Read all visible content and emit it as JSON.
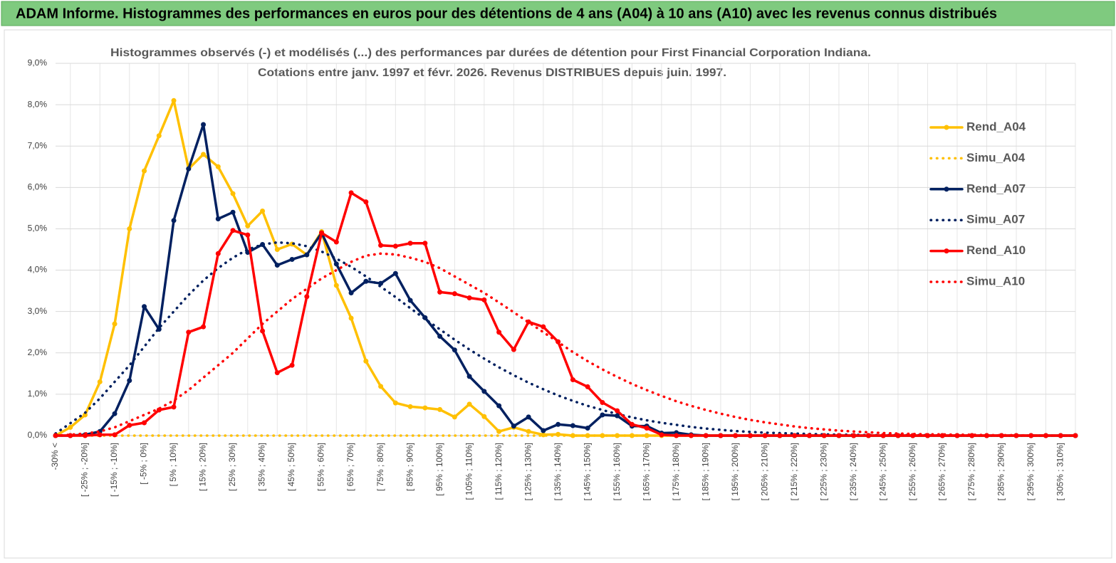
{
  "header": {
    "title": "ADAM Informe. Histogrammes des performances en euros pour des détentions de 4 ans (A04) à 10 ans (A10) avec les revenus connus distribués"
  },
  "chart_data": {
    "type": "line",
    "title": "Histogrammes observés (-) et modélisés (...) des performances par durées de détention pour First Financial Corporation Indiana.",
    "subtitle": "Cotations entre janv. 1997 et févr. 2026. Revenus DISTRIBUES depuis juin. 1997.",
    "categories": [
      "-30% <",
      null,
      "[ -25% ; -20%]",
      null,
      "[ -15% ; -10%]",
      null,
      "[ -5% ; 0%]",
      null,
      "[ 5% ; 10%]",
      null,
      "[ 15% ; 20%]",
      null,
      "[ 25% ; 30%]",
      null,
      "[ 35% ; 40%]",
      null,
      "[ 45% ; 50%]",
      null,
      "[ 55% ; 60%]",
      null,
      "[ 65% ; 70%]",
      null,
      "[ 75% ; 80%]",
      null,
      "[ 85% ; 90%]",
      null,
      "[ 95% ; 100%]",
      null,
      "[ 105% ; 110%]",
      null,
      "[ 115% ; 120%]",
      null,
      "[ 125% ; 130%]",
      null,
      "[ 135% ; 140%]",
      null,
      "[ 145% ; 150%]",
      null,
      "[ 155% ; 160%]",
      null,
      "[ 165% ; 170%]",
      null,
      "[ 175% ; 180%]",
      null,
      "[ 185% ; 190%]",
      null,
      "[ 195% ; 200%]",
      null,
      "[ 205% ; 210%]",
      null,
      "[ 215% ; 220%]",
      null,
      "[ 225% ; 230%]",
      null,
      "[ 235% ; 240%]",
      null,
      "[ 245% ; 250%]",
      null,
      "[ 255% ; 260%]",
      null,
      "[ 265% ; 270%]",
      null,
      "[ 275% ; 280%]",
      null,
      "[ 285% ; 290%]",
      null,
      "[ 295% ; 300%]",
      null,
      "[ 305% ; 310%]",
      null
    ],
    "series": [
      {
        "name": "Rend_A04",
        "color": "#ffc000",
        "style": "solid",
        "values": [
          0,
          0.2,
          0.5,
          1.3,
          2.7,
          5.0,
          6.4,
          7.25,
          8.1,
          6.45,
          6.8,
          6.5,
          5.85,
          5.07,
          5.43,
          4.5,
          4.63,
          4.37,
          4.93,
          3.63,
          2.84,
          1.8,
          1.19,
          0.79,
          0.7,
          0.67,
          0.63,
          0.45,
          0.76,
          0.46,
          0.1,
          0.2,
          0.1,
          0.02,
          0.03,
          0,
          0,
          0,
          0,
          0,
          0,
          0,
          0,
          0,
          0,
          0,
          0,
          0,
          0,
          0,
          0,
          0,
          0,
          0,
          0,
          0,
          0,
          0,
          0,
          0,
          0,
          0,
          0,
          0,
          0,
          0,
          0,
          0,
          0,
          0
        ]
      },
      {
        "name": "Simu_A04",
        "color": "#ffc000",
        "style": "dotted",
        "values": [
          0,
          0,
          0,
          0,
          0,
          0,
          0,
          0,
          0,
          0,
          0,
          0,
          0,
          0,
          0,
          0,
          0,
          0,
          0,
          0,
          0,
          0,
          0,
          0,
          0,
          0,
          0,
          0,
          0,
          0,
          0,
          0,
          0,
          0,
          0,
          0,
          0,
          0,
          0,
          0,
          0,
          0,
          0,
          0,
          0,
          0,
          0,
          0,
          0,
          0,
          0,
          0,
          0,
          0,
          0,
          0,
          0,
          0,
          0,
          0,
          0,
          0,
          0,
          0,
          0,
          0,
          0,
          0,
          0,
          0
        ]
      },
      {
        "name": "Rend_A07",
        "color": "#002060",
        "style": "solid",
        "values": [
          0,
          0,
          0.02,
          0.1,
          0.53,
          1.33,
          3.12,
          2.57,
          5.2,
          6.45,
          7.52,
          5.24,
          5.4,
          4.43,
          4.62,
          4.12,
          4.26,
          4.37,
          4.9,
          4.15,
          3.45,
          3.73,
          3.68,
          3.92,
          3.27,
          2.85,
          2.4,
          2.07,
          1.43,
          1.07,
          0.72,
          0.23,
          0.45,
          0.12,
          0.27,
          0.24,
          0.18,
          0.5,
          0.48,
          0.23,
          0.23,
          0.06,
          0.07,
          0.02,
          0,
          0,
          0,
          0,
          0,
          0,
          0,
          0,
          0,
          0,
          0,
          0,
          0,
          0,
          0,
          0,
          0,
          0,
          0,
          0,
          0,
          0,
          0,
          0,
          0,
          0
        ]
      },
      {
        "name": "Simu_A07",
        "color": "#002060",
        "style": "dotted",
        "values": [
          0.05,
          0.3,
          0.55,
          0.9,
          1.3,
          1.7,
          2.15,
          2.6,
          3.0,
          3.4,
          3.75,
          4.05,
          4.3,
          4.5,
          4.62,
          4.67,
          4.65,
          4.58,
          4.45,
          4.28,
          4.08,
          3.85,
          3.6,
          3.35,
          3.08,
          2.82,
          2.57,
          2.32,
          2.08,
          1.86,
          1.65,
          1.46,
          1.28,
          1.12,
          0.97,
          0.84,
          0.72,
          0.62,
          0.52,
          0.44,
          0.37,
          0.31,
          0.26,
          0.21,
          0.17,
          0.14,
          0.11,
          0.09,
          0.07,
          0.06,
          0.05,
          0.04,
          0.03,
          0.02,
          0.02,
          0.01,
          0.01,
          0.01,
          0.01,
          0.01,
          0,
          0,
          0,
          0,
          0,
          0,
          0,
          0,
          0,
          0
        ]
      },
      {
        "name": "Rend_A10",
        "color": "#ff0000",
        "style": "solid",
        "values": [
          0,
          0,
          0,
          0.02,
          0.02,
          0.25,
          0.31,
          0.62,
          0.69,
          2.5,
          2.63,
          4.4,
          4.96,
          4.85,
          2.53,
          1.52,
          1.7,
          3.36,
          4.9,
          4.68,
          5.87,
          5.65,
          4.6,
          4.58,
          4.65,
          4.65,
          3.47,
          3.43,
          3.33,
          3.28,
          2.5,
          2.08,
          2.75,
          2.63,
          2.27,
          1.35,
          1.18,
          0.8,
          0.6,
          0.27,
          0.18,
          0.02,
          0,
          0,
          0,
          0,
          0,
          0,
          0,
          0,
          0,
          0,
          0,
          0,
          0,
          0,
          0,
          0,
          0,
          0,
          0,
          0,
          0,
          0,
          0,
          0,
          0,
          0,
          0,
          0
        ]
      },
      {
        "name": "Simu_A10",
        "color": "#ff0000",
        "style": "dotted",
        "values": [
          0,
          0.02,
          0.05,
          0.1,
          0.2,
          0.35,
          0.5,
          0.65,
          0.85,
          1.1,
          1.4,
          1.7,
          2.0,
          2.35,
          2.7,
          3.0,
          3.3,
          3.55,
          3.8,
          4.0,
          4.2,
          4.35,
          4.4,
          4.38,
          4.3,
          4.2,
          4.05,
          3.85,
          3.65,
          3.45,
          3.22,
          2.98,
          2.74,
          2.5,
          2.26,
          2.02,
          1.8,
          1.6,
          1.42,
          1.25,
          1.1,
          0.96,
          0.83,
          0.72,
          0.62,
          0.53,
          0.45,
          0.38,
          0.32,
          0.27,
          0.22,
          0.18,
          0.15,
          0.12,
          0.1,
          0.08,
          0.06,
          0.05,
          0.04,
          0.03,
          0.03,
          0.02,
          0.02,
          0.01,
          0.01,
          0.01,
          0,
          0,
          0,
          0
        ]
      }
    ],
    "ylim": [
      0,
      9
    ],
    "yticks": [
      {
        "value": 0,
        "label": "0,0%"
      },
      {
        "value": 1,
        "label": "1,0%"
      },
      {
        "value": 2,
        "label": "2,0%"
      },
      {
        "value": 3,
        "label": "3,0%"
      },
      {
        "value": 4,
        "label": "4,0%"
      },
      {
        "value": 5,
        "label": "5,0%"
      },
      {
        "value": 6,
        "label": "6,0%"
      },
      {
        "value": 7,
        "label": "7,0%"
      },
      {
        "value": 8,
        "label": "8,0%"
      },
      {
        "value": 9,
        "label": "9,0%"
      }
    ],
    "grid": true,
    "legend": "right"
  }
}
